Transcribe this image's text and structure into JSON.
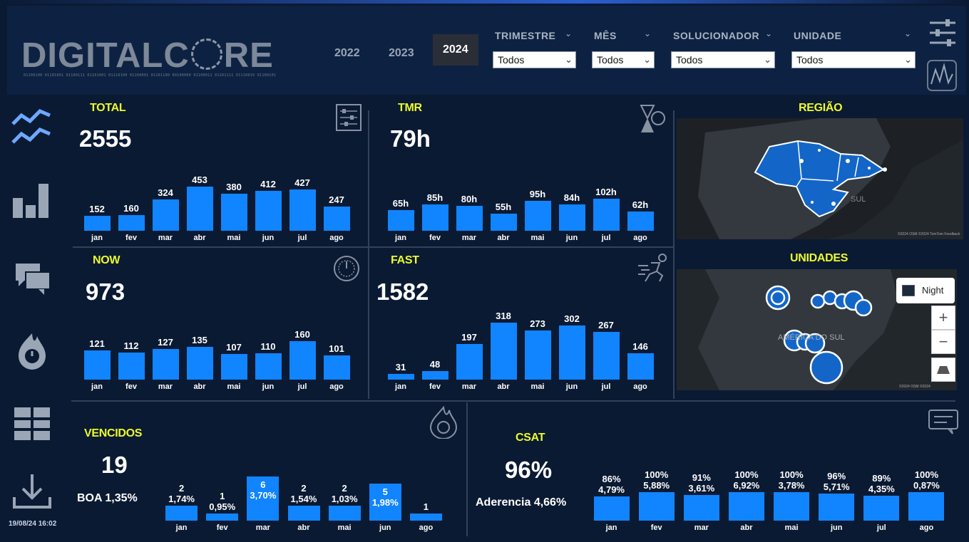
{
  "header": {
    "logo_text": "DIGITALCORE",
    "logo_binary": "01100100 01101001 01100111 01101001 01110100 01100001 01101100 00100000 01100011 01101111 01110010 01100101",
    "years": [
      "2022",
      "2023",
      "2024"
    ],
    "active_year": "2024",
    "filters": [
      {
        "label": "TRIMESTRE",
        "value": "Todos"
      },
      {
        "label": "MÊS",
        "value": "Todos"
      },
      {
        "label": "SOLUCIONADOR",
        "value": "Todos"
      },
      {
        "label": "UNIDADE",
        "value": "Todos"
      }
    ]
  },
  "sidebar": {
    "icons": [
      "line-chart-icon",
      "bar-chart-icon",
      "chat-icon",
      "fire-timer-icon",
      "grid-icon",
      "download-icon"
    ],
    "datetime": "19/08/24 16:02"
  },
  "kpis": {
    "total": {
      "title": "TOTAL",
      "value": "2555"
    },
    "tmr": {
      "title": "TMR",
      "value": "79h"
    },
    "now": {
      "title": "NOW",
      "value": "973"
    },
    "fast": {
      "title": "FAST",
      "value": "1582"
    },
    "vencidos": {
      "title": "VENCIDOS",
      "value": "19",
      "sub": "BOA 1,35%"
    },
    "csat": {
      "title": "CSAT",
      "value": "96%",
      "sub": "Aderencia 4,66%"
    }
  },
  "maps": {
    "regiao": {
      "title": "REGIÃO",
      "label": "SUL",
      "credit": "©2024 OSM ©2024 TomTom Feedback"
    },
    "unidades": {
      "title": "UNIDADES",
      "label": "AMÉRICA DO SUL",
      "style_button": "Night",
      "zoom_in": "+",
      "zoom_out": "−",
      "credit": "©2024 OSM ©2024"
    }
  },
  "chart_data": [
    {
      "id": "total",
      "type": "bar",
      "categories": [
        "jan",
        "fev",
        "mar",
        "abr",
        "mai",
        "jun",
        "jul",
        "ago"
      ],
      "values": [
        152,
        160,
        324,
        453,
        380,
        412,
        427,
        247
      ],
      "labels": [
        "152",
        "160",
        "324",
        "453",
        "380",
        "412",
        "427",
        "247"
      ]
    },
    {
      "id": "tmr",
      "type": "bar",
      "categories": [
        "jan",
        "fev",
        "mar",
        "abr",
        "mai",
        "jun",
        "jul",
        "ago"
      ],
      "values": [
        65,
        85,
        80,
        55,
        95,
        84,
        102,
        62
      ],
      "labels": [
        "65h",
        "85h",
        "80h",
        "55h",
        "95h",
        "84h",
        "102h",
        "62h"
      ]
    },
    {
      "id": "now",
      "type": "bar",
      "categories": [
        "jan",
        "fev",
        "mar",
        "abr",
        "mai",
        "jun",
        "jul",
        "ago"
      ],
      "values": [
        121,
        112,
        127,
        135,
        107,
        110,
        160,
        101
      ],
      "labels": [
        "121",
        "112",
        "127",
        "135",
        "107",
        "110",
        "160",
        "101"
      ]
    },
    {
      "id": "fast",
      "type": "bar",
      "categories": [
        "jan",
        "fev",
        "mar",
        "abr",
        "mai",
        "jun",
        "jul",
        "ago"
      ],
      "values": [
        31,
        48,
        197,
        318,
        273,
        302,
        267,
        146
      ],
      "labels": [
        "31",
        "48",
        "197",
        "318",
        "273",
        "302",
        "267",
        "146"
      ]
    },
    {
      "id": "vencidos",
      "type": "bar",
      "categories": [
        "jan",
        "fev",
        "mar",
        "abr",
        "mai",
        "jun",
        "ago"
      ],
      "values": [
        2,
        1,
        6,
        2,
        2,
        5,
        1
      ],
      "labels": [
        "2\n1,74%",
        "1\n0,95%",
        "6\n3,70%",
        "2\n1,54%",
        "2\n1,03%",
        "5\n1,98%",
        "1"
      ]
    },
    {
      "id": "csat",
      "type": "bar",
      "categories": [
        "jan",
        "fev",
        "mar",
        "abr",
        "mai",
        "jun",
        "jul",
        "ago"
      ],
      "values": [
        86,
        100,
        91,
        100,
        100,
        96,
        89,
        100
      ],
      "labels": [
        "86%\n4,79%",
        "100%\n5,88%",
        "91%\n3,61%",
        "100%\n6,92%",
        "100%\n3,78%",
        "96%\n5,71%",
        "89%\n4,35%",
        "100%\n0,87%"
      ]
    }
  ]
}
